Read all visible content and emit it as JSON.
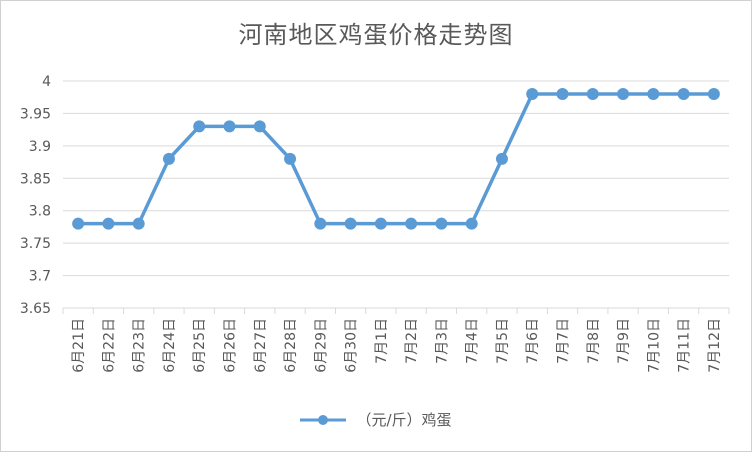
{
  "chart_data": {
    "type": "line",
    "title": "河南地区鸡蛋价格走势图",
    "categories": [
      "6月21日",
      "6月22日",
      "6月23日",
      "6月24日",
      "6月25日",
      "6月26日",
      "6月27日",
      "6月28日",
      "6月29日",
      "6月30日",
      "7月1日",
      "7月2日",
      "7月3日",
      "7月4日",
      "7月5日",
      "7月6日",
      "7月7日",
      "7月8日",
      "7月9日",
      "7月10日",
      "7月11日",
      "7月12日"
    ],
    "series": [
      {
        "name": "（元/斤）鸡蛋",
        "values": [
          3.78,
          3.78,
          3.78,
          3.88,
          3.93,
          3.93,
          3.93,
          3.88,
          3.78,
          3.78,
          3.78,
          3.78,
          3.78,
          3.78,
          3.88,
          3.98,
          3.98,
          3.98,
          3.98,
          3.98,
          3.98,
          3.98
        ],
        "color": "#5b9bd5"
      }
    ],
    "ylim": [
      3.65,
      4
    ],
    "yticks": [
      "3.65",
      "3.7",
      "3.75",
      "3.8",
      "3.85",
      "3.9",
      "3.95",
      "4"
    ],
    "grid": true,
    "legend": "bottom-center"
  }
}
